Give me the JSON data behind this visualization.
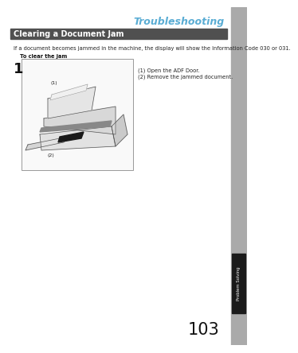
{
  "title": "Troubleshooting",
  "title_color": "#5aadd4",
  "section_header": "Clearing a Document Jam",
  "section_header_bg": "#505050",
  "section_header_text_color": "#ffffff",
  "body_text": "If a document becomes jammed in the machine, the display will show the Information Code 030 or 031.",
  "bold_text": "To clear the jam",
  "step_number": "1",
  "instruction_1": "(1) Open the ADF Door.",
  "instruction_2": "(2) Remove the jammed document.",
  "page_number": "103",
  "tab_label": "Problem Solving",
  "tab_bg": "#1a1a1a",
  "tab_text_color": "#ffffff",
  "bg_color": "#ffffff",
  "sidebar_color": "#aaaaaa",
  "body_text_size": 4.8,
  "instruction_text_size": 4.8,
  "step_number_size": 13
}
